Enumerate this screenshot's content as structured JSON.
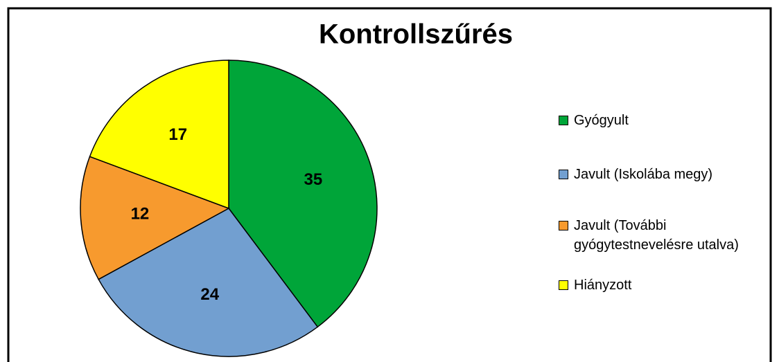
{
  "chart_data": {
    "type": "pie",
    "title": "Kontrollszűrés",
    "categories": [
      "Gyógyult",
      "Javult (Iskolába megy)",
      "Javult (További gyógytestnevelésre utalva)",
      "Hiányzott"
    ],
    "values": [
      35,
      24,
      12,
      17
    ],
    "colors": [
      "#00a539",
      "#729fd0",
      "#f79a2e",
      "#ffff00"
    ],
    "legend": "right"
  }
}
